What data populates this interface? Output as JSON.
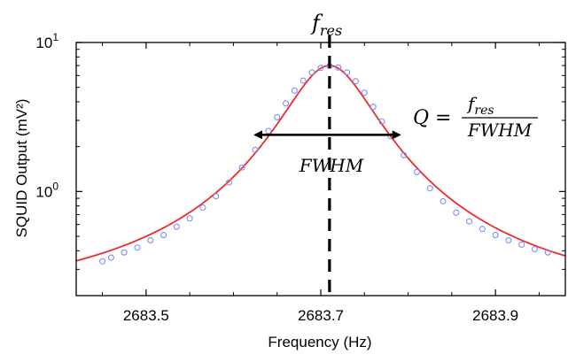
{
  "chart_data": {
    "type": "scatter",
    "xlabel": "Frequency (Hz)",
    "ylabel": "SQUID Output (mV²)",
    "xlim": [
      2683.42,
      2683.98
    ],
    "ylim": [
      0.2,
      10
    ],
    "y_scale": "log",
    "x_ticks": [
      2683.5,
      2683.7,
      2683.9
    ],
    "x_tick_labels": [
      "2683.5",
      "2683.7",
      "2683.9"
    ],
    "y_ticks": [
      1,
      10
    ],
    "y_tick_labels": [
      {
        "base": "10",
        "exp": "0"
      },
      {
        "base": "10",
        "exp": "1"
      }
    ],
    "grid": false,
    "series": [
      {
        "role": "data",
        "marker": "open-circle",
        "color": "#7f8ef0",
        "x": [
          2683.45,
          2683.46,
          2683.475,
          2683.49,
          2683.505,
          2683.52,
          2683.535,
          2683.55,
          2683.565,
          2683.58,
          2683.595,
          2683.61,
          2683.625,
          2683.64,
          2683.65,
          2683.66,
          2683.67,
          2683.68,
          2683.69,
          2683.7,
          2683.71,
          2683.72,
          2683.73,
          2683.74,
          2683.75,
          2683.76,
          2683.77,
          2683.78,
          2683.795,
          2683.81,
          2683.825,
          2683.84,
          2683.855,
          2683.87,
          2683.885,
          2683.9,
          2683.915,
          2683.93,
          2683.945,
          2683.96
        ],
        "y": [
          0.34,
          0.36,
          0.39,
          0.42,
          0.47,
          0.51,
          0.58,
          0.66,
          0.78,
          0.93,
          1.15,
          1.45,
          1.9,
          2.55,
          3.15,
          3.9,
          4.75,
          5.55,
          6.3,
          6.75,
          6.95,
          6.8,
          6.3,
          5.5,
          4.6,
          3.7,
          2.95,
          2.35,
          1.75,
          1.35,
          1.05,
          0.86,
          0.72,
          0.63,
          0.56,
          0.51,
          0.47,
          0.44,
          0.41,
          0.39
        ]
      },
      {
        "role": "fit",
        "color": "#ef2b2b",
        "model": "lorentzian",
        "f_res": 2683.71,
        "peak": 7.0,
        "half_width": 0.048,
        "baseline": 0.16
      }
    ],
    "annotations": {
      "f_res_label": "f",
      "f_res_sub": "res",
      "fwhm_label": "FWHM",
      "q_lhs": "Q =",
      "q_num": "f",
      "q_num_sub": "res",
      "q_den": "FWHM",
      "fwhm_range": [
        2683.625,
        2683.79
      ],
      "fwhm_y": 2.4
    }
  }
}
